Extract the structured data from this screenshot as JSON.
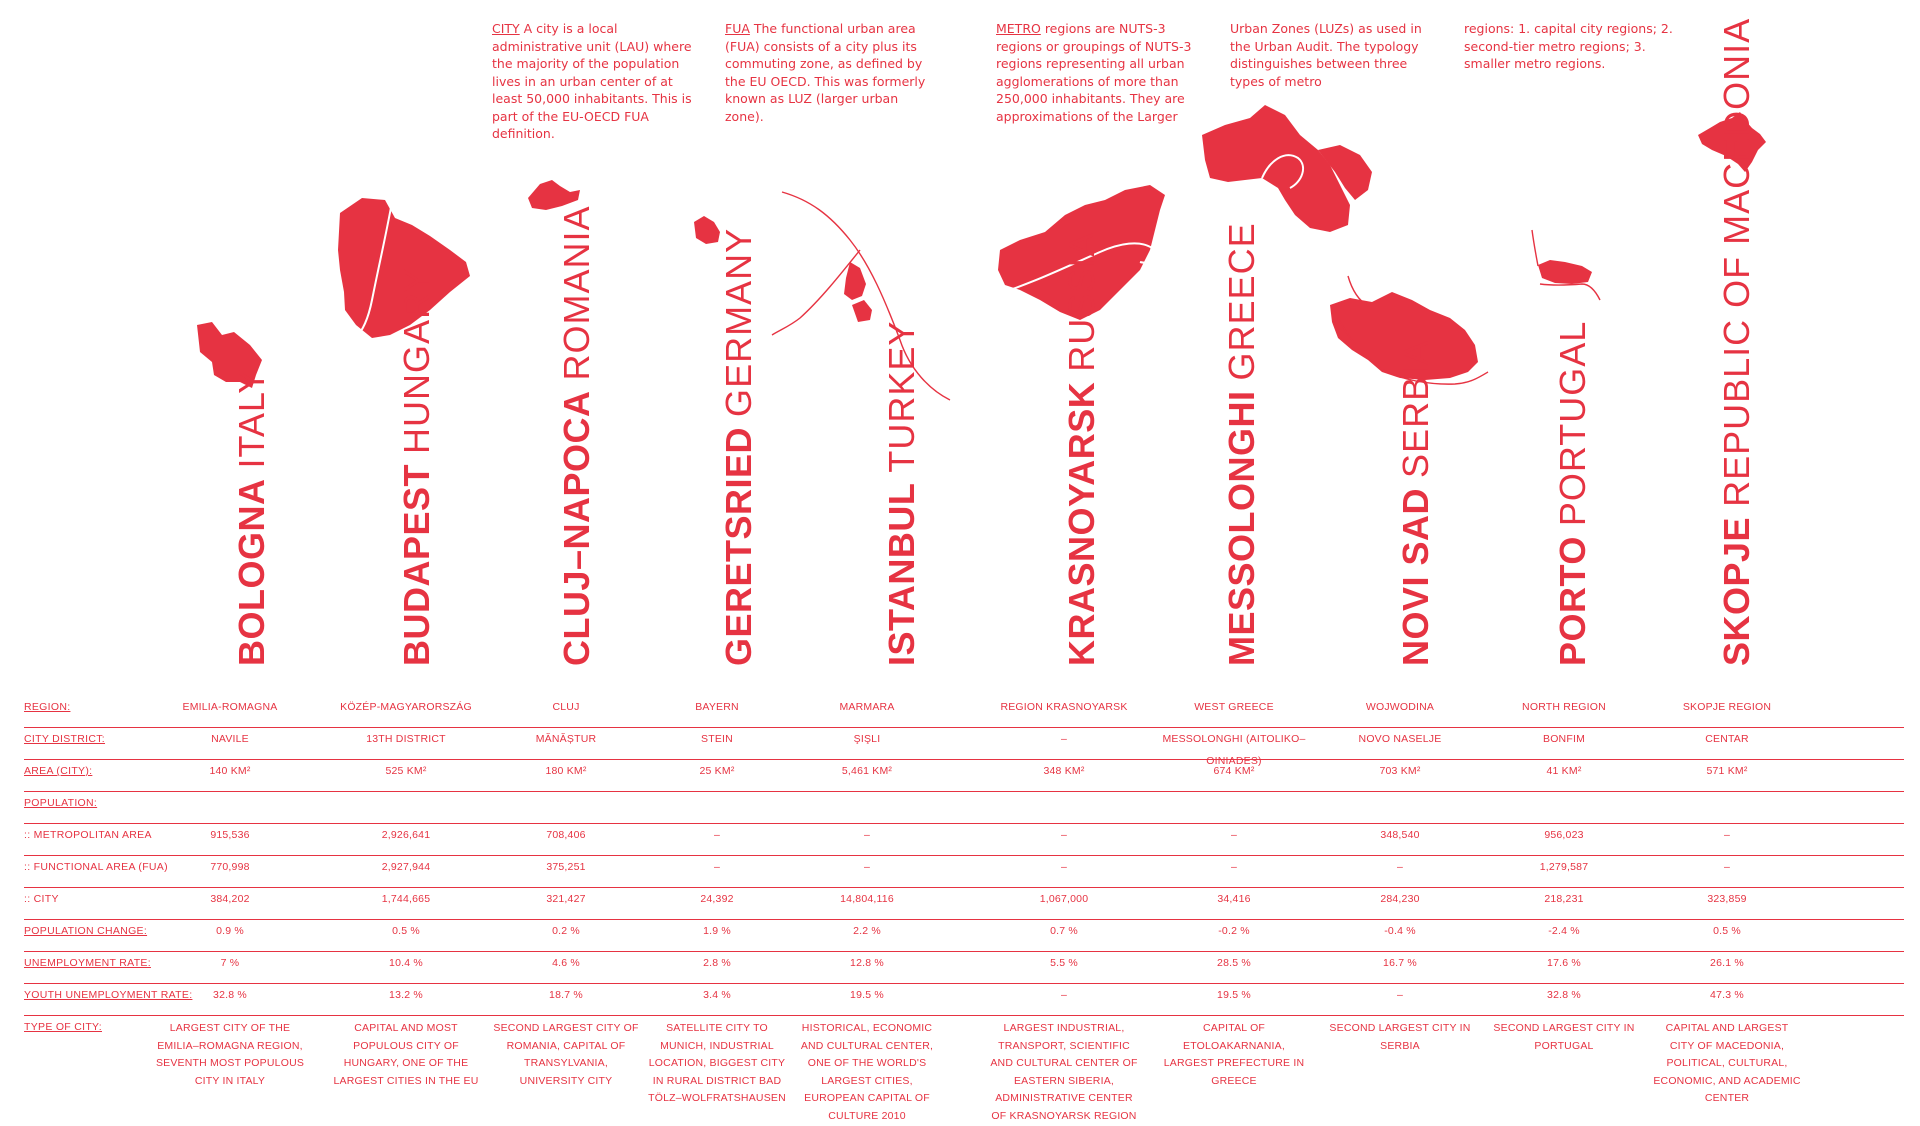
{
  "definitions": [
    {
      "keyword": "CITY",
      "text": " A city is a local administrative unit (LAU) where the majority of the population lives in an urban center of at least 50,000 inhabitants. This is part of the EU-OECD FUA definition."
    },
    {
      "keyword": "FUA",
      "text": " The functional urban area (FUA) consists of a city plus its commuting zone, as defined by the EU OECD. This was formerly known as LUZ (larger urban zone)."
    },
    {
      "keyword": "METRO",
      "text": " regions are NUTS-3 regions or groupings of NUTS-3 regions representing all urban agglomerations of more than 250,000 inhabitants. They are approximations of the Larger"
    },
    {
      "keyword": "",
      "text": "Urban Zones (LUZs) as used in  the Urban Audit. The typology distinguishes between three types of metro"
    },
    {
      "keyword": "",
      "text": "regions: 1. capital city regions; 2. second-tier metro regions; 3. smaller metro regions."
    }
  ],
  "cities": [
    {
      "name": "BOLOGNA",
      "country": "ITALY"
    },
    {
      "name": "BUDAPEST",
      "country": "HUNGARY"
    },
    {
      "name": "CLUJ–NAPOCA",
      "country": "ROMANIA"
    },
    {
      "name": "GERETSRIED",
      "country": "GERMANY"
    },
    {
      "name": "ISTANBUL",
      "country": "TURKEY"
    },
    {
      "name": "KRASNOYARSK",
      "country": "RUSSIA"
    },
    {
      "name": "MESSOLONGHI",
      "country": "GREECE"
    },
    {
      "name": "NOVI SAD",
      "country": "SERBIA"
    },
    {
      "name": "PORTO",
      "country": "PORTUGAL"
    },
    {
      "name": "SKOPJE",
      "country": "REPUBLIC OF MACEDONIA"
    }
  ],
  "table": {
    "rows": [
      {
        "label": "REGION:",
        "underline": true,
        "values": [
          "EMILIA-ROMAGNA",
          "KÖZÉP-MAGYARORSZÁG",
          "CLUJ",
          "BAYERN",
          "MARMARA",
          "REGION KRASNOYARSK",
          "WEST GREECE",
          "WOJWODINA",
          "NORTH REGION",
          "SKOPJE REGION"
        ]
      },
      {
        "label": "CITY DISTRICT:",
        "underline": true,
        "values": [
          "NAVILE",
          "13TH DISTRICT",
          "MĂNĂȘTUR",
          "STEIN",
          "ŞIŞLI",
          "–",
          "MESSOLONGHI (AITOLIKO–OINIADES)",
          "NOVO NASELJE",
          "BONFIM",
          "CENTAR"
        ]
      },
      {
        "label": "AREA (CITY):",
        "underline": true,
        "values": [
          "140 km²",
          "525 km²",
          "180 km²",
          "25 km²",
          "5,461 km²",
          "348 km²",
          "674 km²",
          "703 km²",
          "41 km²",
          "571 km²"
        ]
      },
      {
        "label": "POPULATION:",
        "underline": true,
        "values": [
          "",
          "",
          "",
          "",
          "",
          "",
          "",
          "",
          "",
          ""
        ]
      },
      {
        "label": "::  METROPOLITAN AREA",
        "underline": false,
        "values": [
          "915,536",
          "2,926,641",
          "708,406",
          "–",
          "–",
          "–",
          "–",
          "348,540",
          "956,023",
          "–"
        ]
      },
      {
        "label": "::  FUNCTIONAL AREA (FUA)",
        "underline": false,
        "values": [
          "770,998",
          "2,927,944",
          "375,251",
          "–",
          "–",
          "–",
          "–",
          "–",
          "1,279,587",
          "–"
        ]
      },
      {
        "label": "::  CITY",
        "underline": false,
        "values": [
          "384,202",
          "1,744,665",
          "321,427",
          "24,392",
          "14,804,116",
          "1,067,000",
          "34,416",
          "284,230",
          "218,231",
          "323,859"
        ]
      },
      {
        "label": "POPULATION CHANGE:",
        "underline": true,
        "values": [
          "0.9 %",
          "0.5 %",
          "0.2 %",
          "1.9 %",
          "2.2 %",
          "0.7 %",
          "-0.2 %",
          "-0.4 %",
          "-2.4 %",
          "0.5 %"
        ]
      },
      {
        "label": "UNEMPLOYMENT RATE:",
        "underline": true,
        "values": [
          "7 %",
          "10.4 %",
          "4.6 %",
          "2.8 %",
          "12.8 %",
          "5.5 %",
          "28.5 %",
          "16.7 %",
          "17.6 %",
          "26.1 %"
        ]
      },
      {
        "label": "YOUTH UNEMPLOYMENT RATE:",
        "underline": true,
        "values": [
          "32.8 %",
          "13.2 %",
          "18.7 %",
          "3.4 %",
          "19.5 %",
          "–",
          "19.5 %",
          "–",
          "32.8 %",
          "47.3 %"
        ]
      },
      {
        "label": "TYPE OF CITY:",
        "underline": true,
        "values": [
          "LARGEST CITY OF THE EMILIA–ROMAGNA REGION, SEVENTH MOST POPULOUS CITY IN ITALY",
          "CAPITAL AND MOST POPULOUS CITY OF HUNGARY, ONE OF THE LARGEST CITIES IN THE EU",
          "SECOND LARGEST CITY OF ROMANIA, CAPITAL OF TRANSYLVANIA, UNIVERSITY CITY",
          "SATELLITE CITY TO MUNICH, INDUSTRIAL LOCATION, BIGGEST CITY IN RURAL DISTRICT BAD TÖLZ–WOLFRATSHAUSEN",
          "HISTORICAL, ECONOMIC AND CULTURAL CENTER, ONE OF THE WORLD'S LARGEST CITIES, EUROPEAN CAPITAL OF CULTURE 2010",
          "LARGEST INDUSTRIAL, TRANSPORT, SCIENTIFIC AND CULTURAL CENTER OF EASTERN SIBERIA, ADMINISTRATIVE CENTER OF KRASNOYARSK REGION",
          "CAPITAL OF ETOLOAKARNANIA, LARGEST PREFECTURE IN GREECE",
          "SECOND LARGEST CITY IN SERBIA",
          "SECOND LARGEST CITY IN PORTUGAL",
          "CAPITAL AND LARGEST CITY OF MACEDONIA, POLITICAL, CULTURAL, ECONOMIC, AND ACADEMIC CENTER"
        ]
      }
    ]
  }
}
